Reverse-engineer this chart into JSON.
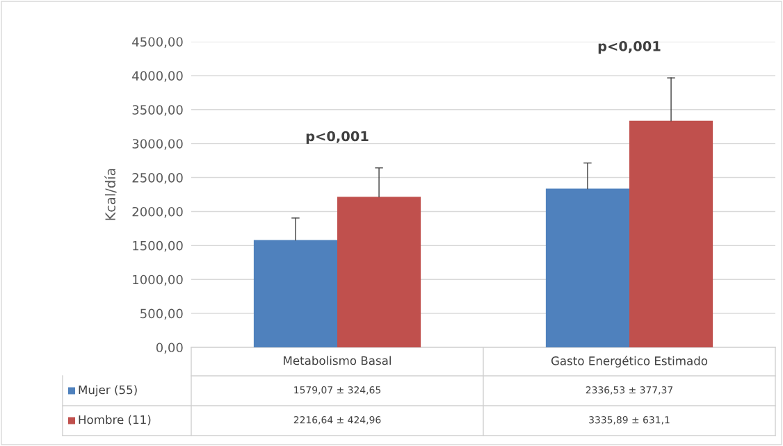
{
  "chart_data": {
    "type": "bar",
    "ylabel": "Kcal/día",
    "categories": [
      "Metabolismo Basal",
      "Gasto Energético Estimado"
    ],
    "series": [
      {
        "name": "Mujer (55)",
        "color": "#4f81bd",
        "values": [
          1579.07,
          2336.53
        ],
        "errors": [
          [
            1579.07,
            1903.72
          ],
          [
            2336.53,
            2713.9
          ]
        ],
        "value_labels": [
          "1579,07 ± 324,65",
          "2336,53 ± 377,37"
        ]
      },
      {
        "name": "Hombre (11)",
        "color": "#c0504d",
        "values": [
          2216.64,
          3335.89
        ],
        "errors": [
          [
            2216.64,
            2641.6
          ],
          [
            3335.89,
            3966.99
          ]
        ],
        "value_labels": [
          "2216,64 ± 424,96",
          "3335,89 ± 631,1"
        ]
      }
    ],
    "ylim": [
      0,
      4500
    ],
    "yticks": [
      {
        "value": 0,
        "label": "0,00"
      },
      {
        "value": 500,
        "label": "500,00"
      },
      {
        "value": 1000,
        "label": "1000,00"
      },
      {
        "value": 1500,
        "label": "1500,00"
      },
      {
        "value": 2000,
        "label": "2000,00"
      },
      {
        "value": 2500,
        "label": "2500,00"
      },
      {
        "value": 3000,
        "label": "3000,00"
      },
      {
        "value": 3500,
        "label": "3500,00"
      },
      {
        "value": 4000,
        "label": "4000,00"
      },
      {
        "value": 4500,
        "label": "4500,00"
      }
    ],
    "grid": "y",
    "annotations": [
      "p<0,001",
      "p<0,001"
    ],
    "legend": "bottom"
  }
}
